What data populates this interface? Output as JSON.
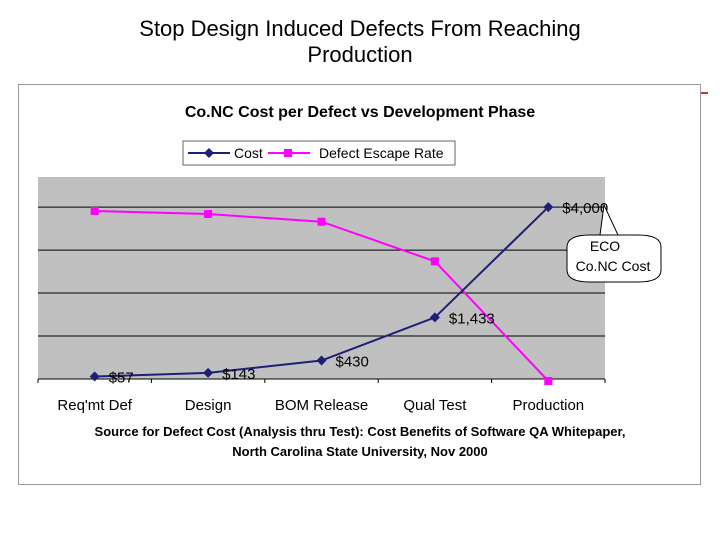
{
  "slide": {
    "title_line1": "Stop Design Induced Defects From Reaching",
    "title_line2": "Production"
  },
  "chart_data": {
    "type": "line",
    "title": "Co.NC Cost per Defect vs Development Phase",
    "categories": [
      "Req'mt Def",
      "Design",
      "BOM Release",
      "Qual Test",
      "Production"
    ],
    "series": [
      {
        "name": "Cost",
        "values": [
          57,
          143,
          430,
          1433,
          4000
        ],
        "labels": [
          "$57",
          "$143",
          "$430",
          "$1,433",
          "$4,000"
        ],
        "color": "#1f1f7a",
        "marker": "diamond"
      },
      {
        "name": "Defect Escape Rate",
        "values": [
          3.95,
          3.88,
          3.7,
          2.78,
          0
        ],
        "color": "#ff00ff",
        "marker": "square"
      }
    ],
    "ylim": [
      0,
      4700
    ],
    "grid": true,
    "plot_background": "#c0c0c0",
    "callout": {
      "line1": "ECO",
      "line2": "Co.NC Cost"
    }
  },
  "footnote": {
    "line1": "Source for Defect Cost (Analysis thru Test): Cost Benefits of Software QA Whitepaper,",
    "line2": "North Carolina State University, Nov 2000"
  }
}
